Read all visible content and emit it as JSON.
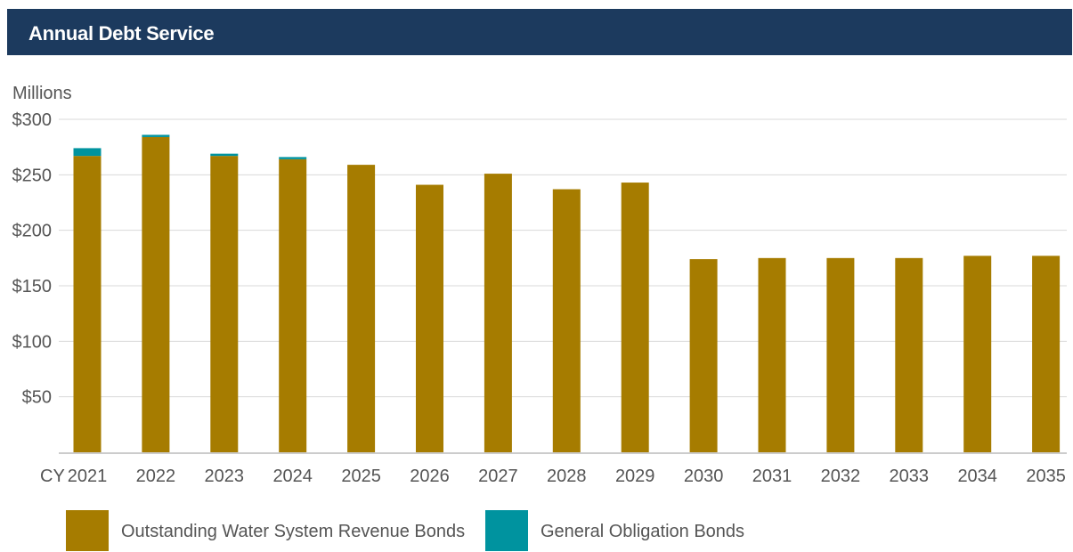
{
  "header": {
    "title": "Annual Debt Service"
  },
  "chart_data": {
    "type": "bar",
    "stacked": true,
    "title": "Annual Debt Service",
    "ylabel": "Millions",
    "x_prefix": "CY",
    "ylim": [
      0,
      300
    ],
    "yticks": [
      50,
      100,
      150,
      200,
      250,
      300
    ],
    "ytick_labels": [
      "$50",
      "$100",
      "$150",
      "$200",
      "$250",
      "$300"
    ],
    "grid": true,
    "legend_position": "bottom",
    "categories": [
      "2021",
      "2022",
      "2023",
      "2024",
      "2025",
      "2026",
      "2027",
      "2028",
      "2029",
      "2030",
      "2031",
      "2032",
      "2033",
      "2034",
      "2035"
    ],
    "series": [
      {
        "name": "Outstanding Water System Revenue Bonds",
        "color": "#a67c00",
        "values": [
          267,
          284,
          267,
          264,
          259,
          241,
          251,
          237,
          243,
          174,
          175,
          175,
          175,
          177,
          177
        ]
      },
      {
        "name": "General Obligation Bonds",
        "color": "#00939f",
        "values": [
          7,
          2,
          2,
          2,
          0,
          0,
          0,
          0,
          0,
          0,
          0,
          0,
          0,
          0,
          0
        ]
      }
    ]
  }
}
